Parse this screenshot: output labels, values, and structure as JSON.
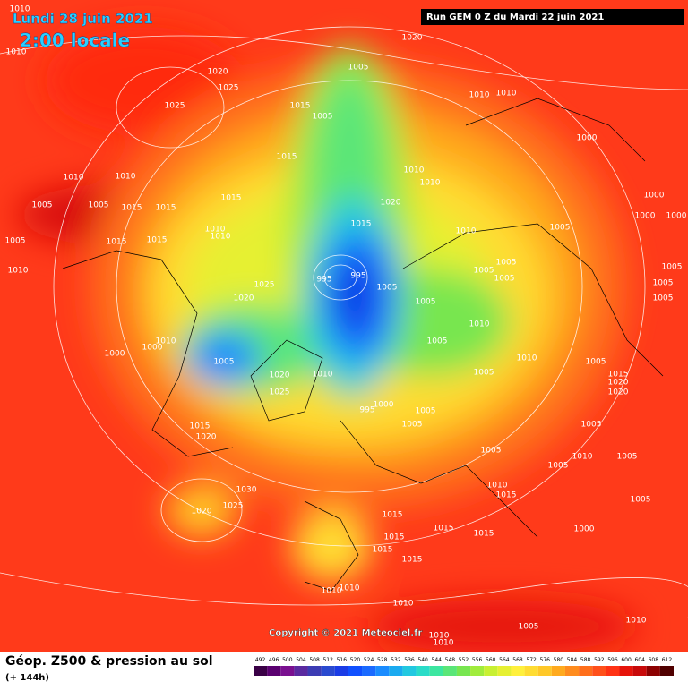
{
  "header": {
    "date": "Lundi 28 juin 2021",
    "time": "2:00 locale",
    "run": "Run GEM 0 Z du Mardi 22 juin 2021"
  },
  "footer": {
    "title": "Géop. Z500 & pression au sol",
    "lead": "(+ 144h)",
    "copyright": "Copyright © 2021 Meteociel.fr"
  },
  "legend": {
    "values": [
      492,
      496,
      500,
      504,
      508,
      512,
      516,
      520,
      524,
      528,
      532,
      536,
      540,
      544,
      548,
      552,
      556,
      560,
      564,
      568,
      572,
      576,
      580,
      584,
      588,
      592,
      596,
      600,
      604,
      608,
      612
    ],
    "colors": [
      "#3a0046",
      "#5a0070",
      "#7a1090",
      "#5a2aa0",
      "#3c3cb4",
      "#2a4ad0",
      "#1a3ce6",
      "#1050ff",
      "#1a6aff",
      "#1a8cff",
      "#1aaaf0",
      "#22c8e0",
      "#2adcc8",
      "#3ce6a0",
      "#5ae678",
      "#78e650",
      "#a0ec3c",
      "#c8f032",
      "#e6f032",
      "#fff03c",
      "#ffdc32",
      "#ffc828",
      "#ffaa1e",
      "#ff8c1e",
      "#ff6e1a",
      "#ff501a",
      "#ff3214",
      "#e6140a",
      "#c80a0a",
      "#8c0000",
      "#500000"
    ]
  },
  "pressure_labels": [
    1010,
    1010,
    1020,
    1005,
    1020,
    1025,
    1025,
    1015,
    1005,
    1010,
    1010,
    1000,
    1015,
    1010,
    1010,
    1020,
    1015,
    1010,
    1010,
    1005,
    1005,
    1015,
    1015,
    1010,
    1010,
    1005,
    1015,
    1015,
    1015,
    1010,
    1005,
    1000,
    1000,
    1000,
    1005,
    1005,
    1005,
    1005,
    1005,
    1005,
    1010,
    1025,
    1020,
    995,
    995,
    1005,
    1005,
    1005,
    1010,
    1010,
    1005,
    1015,
    1020,
    1020,
    1000,
    1010,
    1000,
    1005,
    1020,
    1025,
    1010,
    995,
    1000,
    1005,
    1005,
    1005,
    1005,
    1015,
    1020,
    1005,
    1005,
    1010,
    1005,
    1010,
    1015,
    1030,
    1025,
    1020,
    1005,
    1015,
    1015,
    1015,
    1000,
    1015,
    1015,
    1015,
    1010,
    1010,
    1010,
    1005,
    1010,
    1010,
    1010
  ]
}
